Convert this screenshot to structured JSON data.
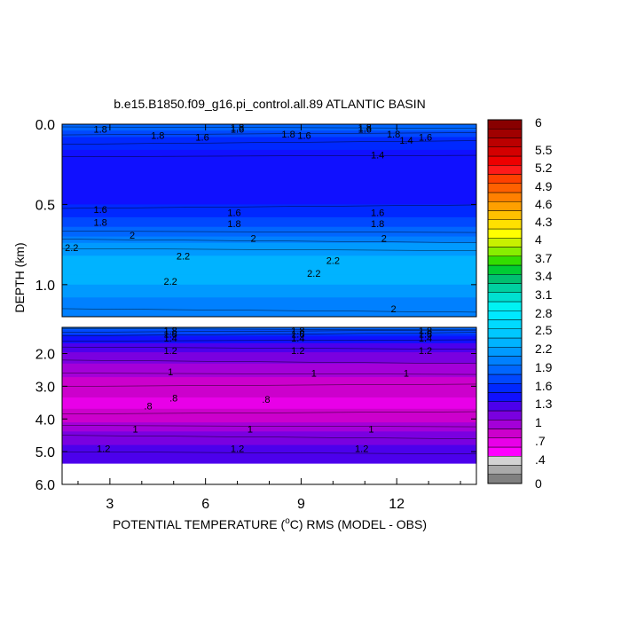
{
  "chart_data": {
    "type": "heatmap",
    "title": "b.e15.B1850.f09_g16.pi_control.all.89 ATLANTIC BASIN",
    "xlabel_parts": [
      "POTENTIAL TEMPERATURE (",
      "o",
      "C) RMS (MODEL - OBS)"
    ],
    "ylabel": "DEPTH (km)",
    "xlim": [
      1.5,
      14.5
    ],
    "x_ticks": [
      3,
      6,
      9,
      12
    ],
    "x_tick_labels": [
      "3",
      "6",
      "9",
      "12"
    ],
    "upper_panel": {
      "ylim": [
        0.0,
        1.2
      ],
      "y_ticks": [
        0.0,
        0.5,
        1.0
      ],
      "y_tick_labels": [
        "0.0",
        "0.5",
        "1.0"
      ],
      "depth_profile": [
        {
          "depth": 0.0,
          "value": 1.9
        },
        {
          "depth": 0.05,
          "value": 1.75
        },
        {
          "depth": 0.1,
          "value": 1.6
        },
        {
          "depth": 0.2,
          "value": 1.4
        },
        {
          "depth": 0.3,
          "value": 1.35
        },
        {
          "depth": 0.45,
          "value": 1.4
        },
        {
          "depth": 0.55,
          "value": 1.6
        },
        {
          "depth": 0.65,
          "value": 1.8
        },
        {
          "depth": 0.75,
          "value": 2.1
        },
        {
          "depth": 0.85,
          "value": 2.3
        },
        {
          "depth": 1.0,
          "value": 2.25
        },
        {
          "depth": 1.1,
          "value": 2.05
        },
        {
          "depth": 1.2,
          "value": 1.95
        }
      ],
      "contour_labels": [
        {
          "x": 2.7,
          "depth": 0.03,
          "text": "1.8"
        },
        {
          "x": 4.5,
          "depth": 0.07,
          "text": "1.8"
        },
        {
          "x": 5.9,
          "depth": 0.08,
          "text": "1.6"
        },
        {
          "x": 7.0,
          "depth": 0.02,
          "text": "1.8"
        },
        {
          "x": 7.0,
          "depth": 0.03,
          "text": "1.6"
        },
        {
          "x": 8.6,
          "depth": 0.06,
          "text": "1.8"
        },
        {
          "x": 9.1,
          "depth": 0.07,
          "text": "1.6"
        },
        {
          "x": 11.0,
          "depth": 0.02,
          "text": "1.8"
        },
        {
          "x": 11.0,
          "depth": 0.03,
          "text": "1.6"
        },
        {
          "x": 11.9,
          "depth": 0.06,
          "text": "1.8"
        },
        {
          "x": 12.3,
          "depth": 0.1,
          "text": "1.4"
        },
        {
          "x": 12.9,
          "depth": 0.08,
          "text": "1.6"
        },
        {
          "x": 11.4,
          "depth": 0.19,
          "text": "1.4"
        },
        {
          "x": 2.7,
          "depth": 0.53,
          "text": "1.6"
        },
        {
          "x": 6.9,
          "depth": 0.55,
          "text": "1.6"
        },
        {
          "x": 11.4,
          "depth": 0.55,
          "text": "1.6"
        },
        {
          "x": 2.7,
          "depth": 0.61,
          "text": "1.8"
        },
        {
          "x": 6.9,
          "depth": 0.62,
          "text": "1.8"
        },
        {
          "x": 11.4,
          "depth": 0.62,
          "text": "1.8"
        },
        {
          "x": 3.7,
          "depth": 0.69,
          "text": "2"
        },
        {
          "x": 7.5,
          "depth": 0.71,
          "text": "2"
        },
        {
          "x": 11.6,
          "depth": 0.71,
          "text": "2"
        },
        {
          "x": 1.8,
          "depth": 0.77,
          "text": "2.2"
        },
        {
          "x": 5.3,
          "depth": 0.82,
          "text": "2.2"
        },
        {
          "x": 10.0,
          "depth": 0.85,
          "text": "2.2"
        },
        {
          "x": 9.4,
          "depth": 0.93,
          "text": "2.2"
        },
        {
          "x": 4.9,
          "depth": 0.98,
          "text": "2.2"
        },
        {
          "x": 11.9,
          "depth": 1.15,
          "text": "2"
        }
      ]
    },
    "lower_panel": {
      "ylim": [
        1.2,
        6.0
      ],
      "y_ticks": [
        2.0,
        3.0,
        4.0,
        5.0,
        6.0
      ],
      "y_tick_labels": [
        "2.0",
        "3.0",
        "4.0",
        "5.0",
        "6.0"
      ],
      "data_bottom_depth": 5.35,
      "depth_profile": [
        {
          "depth": 1.2,
          "value": 1.9
        },
        {
          "depth": 1.5,
          "value": 1.5
        },
        {
          "depth": 1.8,
          "value": 1.25
        },
        {
          "depth": 2.2,
          "value": 1.1
        },
        {
          "depth": 2.6,
          "value": 0.95
        },
        {
          "depth": 3.0,
          "value": 0.8
        },
        {
          "depth": 3.6,
          "value": 0.72
        },
        {
          "depth": 4.0,
          "value": 0.85
        },
        {
          "depth": 4.3,
          "value": 1.0
        },
        {
          "depth": 4.6,
          "value": 1.15
        },
        {
          "depth": 5.0,
          "value": 1.25
        },
        {
          "depth": 5.35,
          "value": 1.3
        }
      ],
      "contour_labels": [
        {
          "x": 4.9,
          "depth": 1.3,
          "text": "1.8"
        },
        {
          "x": 8.9,
          "depth": 1.3,
          "text": "1.8"
        },
        {
          "x": 12.9,
          "depth": 1.3,
          "text": "1.8"
        },
        {
          "x": 4.9,
          "depth": 1.4,
          "text": "1.6"
        },
        {
          "x": 8.9,
          "depth": 1.4,
          "text": "1.6"
        },
        {
          "x": 12.9,
          "depth": 1.4,
          "text": "1.6"
        },
        {
          "x": 4.9,
          "depth": 1.52,
          "text": "1.4"
        },
        {
          "x": 8.9,
          "depth": 1.52,
          "text": "1.4"
        },
        {
          "x": 12.9,
          "depth": 1.52,
          "text": "1.4"
        },
        {
          "x": 4.9,
          "depth": 1.9,
          "text": "1.2"
        },
        {
          "x": 8.9,
          "depth": 1.9,
          "text": "1.2"
        },
        {
          "x": 12.9,
          "depth": 1.9,
          "text": "1.2"
        },
        {
          "x": 4.9,
          "depth": 2.55,
          "text": "1"
        },
        {
          "x": 9.4,
          "depth": 2.6,
          "text": "1"
        },
        {
          "x": 12.3,
          "depth": 2.6,
          "text": "1"
        },
        {
          "x": 5.0,
          "depth": 3.35,
          "text": ".8"
        },
        {
          "x": 4.2,
          "depth": 3.6,
          "text": ".8"
        },
        {
          "x": 7.9,
          "depth": 3.4,
          "text": ".8"
        },
        {
          "x": 3.8,
          "depth": 4.3,
          "text": "1"
        },
        {
          "x": 7.4,
          "depth": 4.3,
          "text": "1"
        },
        {
          "x": 11.2,
          "depth": 4.3,
          "text": "1"
        },
        {
          "x": 2.8,
          "depth": 4.9,
          "text": "1.2"
        },
        {
          "x": 7.0,
          "depth": 4.9,
          "text": "1.2"
        },
        {
          "x": 10.9,
          "depth": 4.9,
          "text": "1.2"
        }
      ]
    },
    "colorbar": {
      "min": 0,
      "max": 6,
      "tick_labels": [
        "0",
        ".4",
        ".7",
        "1",
        "1.3",
        "1.6",
        "1.9",
        "2.2",
        "2.5",
        "2.8",
        "3.1",
        "3.4",
        "3.7",
        "4",
        "4.3",
        "4.6",
        "4.9",
        "5.2",
        "5.5",
        "6"
      ],
      "colors": [
        "#808080",
        "#a9a9a9",
        "#d3d3d3",
        "#ff00ff",
        "#e800e8",
        "#cc00cc",
        "#a400d8",
        "#7a00e0",
        "#4c00ec",
        "#1010ff",
        "#0028ff",
        "#0048ff",
        "#0066ff",
        "#0080ff",
        "#009aff",
        "#00b3ff",
        "#00c8ff",
        "#00daff",
        "#00e8ff",
        "#00f2f2",
        "#00e0d0",
        "#00d0a0",
        "#00c070",
        "#00cc33",
        "#33dd00",
        "#88ee00",
        "#c8f000",
        "#ffff00",
        "#ffe000",
        "#ffc000",
        "#ffa000",
        "#ff8000",
        "#ff6000",
        "#ff4000",
        "#ff1a1a",
        "#ee0000",
        "#d40000",
        "#bb0000",
        "#a00000",
        "#880000"
      ]
    }
  }
}
